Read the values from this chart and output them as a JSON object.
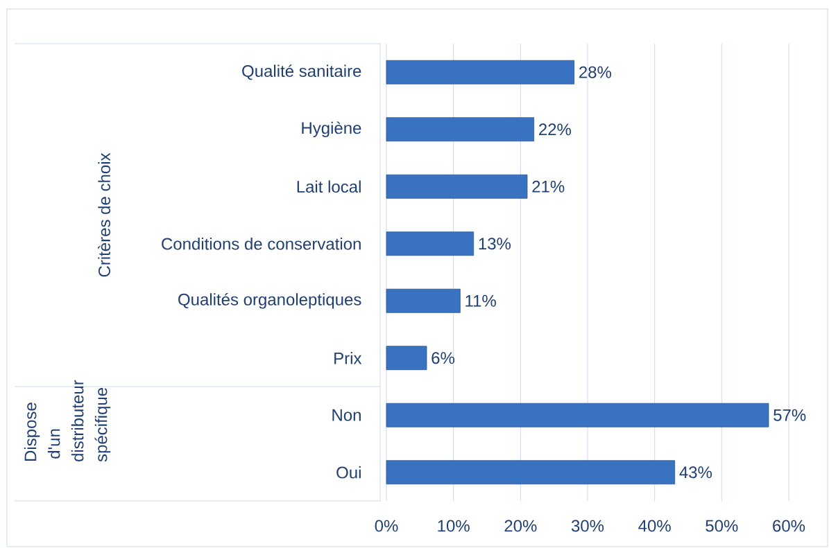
{
  "chart_data": {
    "type": "bar",
    "orientation": "horizontal",
    "categories": [
      "Qualité sanitaire",
      "Hygiène",
      "Lait local",
      "Conditions de conservation",
      "Qualités organoleptiques",
      "Prix",
      "Non",
      "Oui"
    ],
    "values": [
      28,
      22,
      21,
      13,
      11,
      6,
      57,
      43
    ],
    "value_labels": [
      "28%",
      "22%",
      "21%",
      "13%",
      "11%",
      "6%",
      "57%",
      "43%"
    ],
    "color": "#3a72c2",
    "xlim": [
      0,
      60
    ],
    "xticks": [
      {
        "value": 0,
        "label": "0%"
      },
      {
        "value": 10,
        "label": "10%"
      },
      {
        "value": 20,
        "label": "20%"
      },
      {
        "value": 30,
        "label": "30%"
      },
      {
        "value": 40,
        "label": "40%"
      },
      {
        "value": 50,
        "label": "50%"
      },
      {
        "value": 60,
        "label": "60%"
      }
    ],
    "grid": "x",
    "annotations": [
      "Critères de choix",
      "Dispose d'un distributeur spécifique"
    ]
  }
}
